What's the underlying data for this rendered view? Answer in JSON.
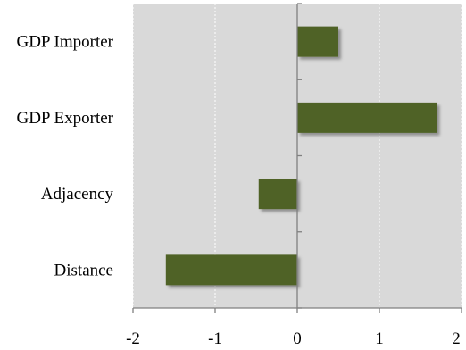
{
  "chart_data": {
    "type": "bar",
    "orientation": "horizontal",
    "categories": [
      "GDP Importer",
      "GDP Exporter",
      "Adjacency",
      "Distance"
    ],
    "values": [
      0.5,
      1.7,
      -0.47,
      -1.6
    ],
    "title": "",
    "xlabel": "",
    "ylabel": "",
    "xlim": [
      -2,
      2
    ],
    "xticks": [
      "-2",
      "-1",
      "0",
      "1",
      "2"
    ],
    "grid": "vertical dashed",
    "legend": "none",
    "colors": {
      "bar": "#4f6228",
      "plot_background": "#d9d9d9",
      "axis": "#808080",
      "grid": "#ffffff"
    }
  }
}
